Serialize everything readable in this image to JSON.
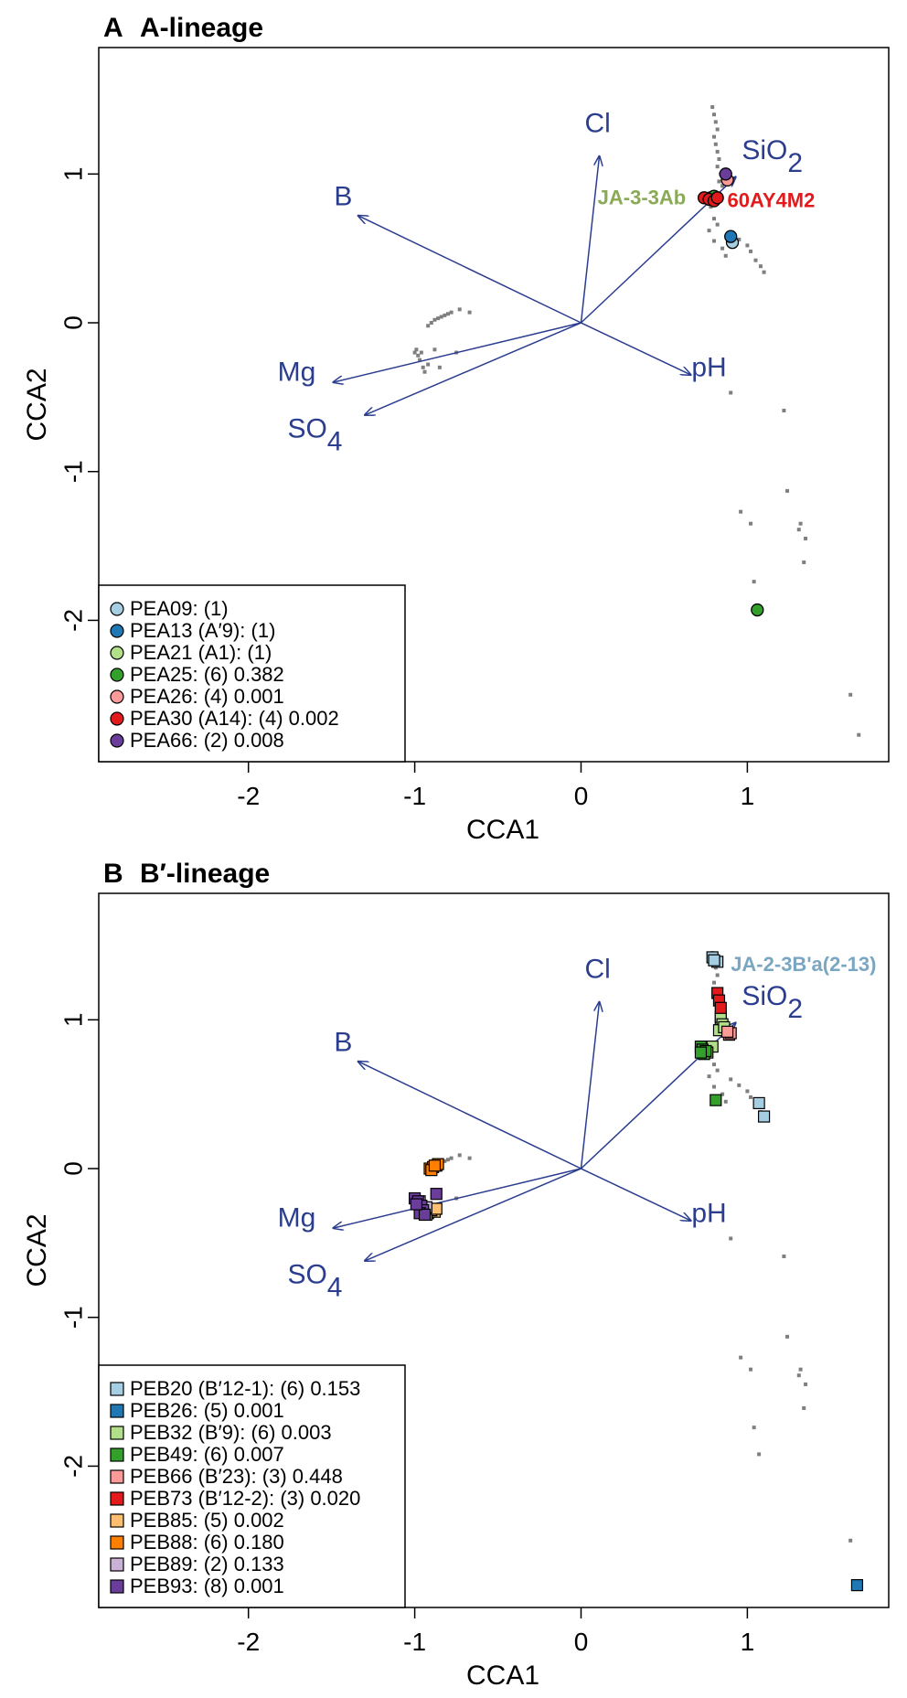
{
  "chart_data": [
    {
      "type": "scatter",
      "panel_label": "A",
      "title": "A-lineage",
      "xlabel": "CCA1",
      "ylabel": "CCA2",
      "xlim": [
        -2.9,
        1.85
      ],
      "ylim": [
        -2.95,
        1.85
      ],
      "xticks": [
        -2,
        -1,
        0,
        1
      ],
      "yticks": [
        -2,
        -1,
        0,
        1
      ],
      "grid": false,
      "legend_position": "bottom-left",
      "background_points": [
        [
          0.79,
          1.45
        ],
        [
          0.8,
          1.4
        ],
        [
          0.81,
          1.35
        ],
        [
          0.82,
          1.3
        ],
        [
          0.8,
          1.25
        ],
        [
          0.81,
          1.2
        ],
        [
          0.82,
          1.15
        ],
        [
          0.83,
          1.1
        ],
        [
          0.82,
          1.05
        ],
        [
          0.84,
          1.0
        ],
        [
          0.83,
          0.95
        ],
        [
          0.85,
          0.92
        ],
        [
          0.78,
          0.78
        ],
        [
          0.8,
          0.7
        ],
        [
          0.82,
          0.66
        ],
        [
          0.77,
          0.62
        ],
        [
          0.8,
          0.55
        ],
        [
          0.85,
          0.5
        ],
        [
          0.87,
          0.45
        ],
        [
          1.0,
          0.52
        ],
        [
          1.02,
          0.48
        ],
        [
          1.05,
          0.42
        ],
        [
          1.08,
          0.38
        ],
        [
          1.1,
          0.34
        ],
        [
          0.95,
          0.56
        ],
        [
          0.9,
          0.6
        ],
        [
          -1.0,
          -0.2
        ],
        [
          -0.98,
          -0.22
        ],
        [
          -0.97,
          -0.25
        ],
        [
          -0.95,
          -0.3
        ],
        [
          -0.94,
          -0.33
        ],
        [
          -0.92,
          -0.28
        ],
        [
          -0.99,
          -0.18
        ],
        [
          -0.96,
          -0.2
        ],
        [
          -0.9,
          0.0
        ],
        [
          -0.88,
          0.02
        ],
        [
          -0.86,
          0.03
        ],
        [
          -0.84,
          0.04
        ],
        [
          -0.82,
          0.05
        ],
        [
          -0.8,
          0.06
        ],
        [
          -0.78,
          0.07
        ],
        [
          -0.73,
          0.09
        ],
        [
          -0.67,
          0.07
        ],
        [
          -0.88,
          -0.18
        ],
        [
          -0.92,
          -0.02
        ],
        [
          -0.85,
          -0.3
        ],
        [
          -0.75,
          -0.2
        ],
        [
          0.9,
          -0.47
        ],
        [
          1.22,
          -0.59
        ],
        [
          1.24,
          -1.13
        ],
        [
          0.96,
          -1.27
        ],
        [
          1.02,
          -1.35
        ],
        [
          1.32,
          -1.35
        ],
        [
          1.35,
          -1.45
        ],
        [
          1.31,
          -1.39
        ],
        [
          1.34,
          -1.61
        ],
        [
          1.04,
          -1.74
        ],
        [
          1.62,
          -2.5
        ],
        [
          1.67,
          -2.77
        ]
      ],
      "vectors": [
        {
          "label": "Cl",
          "sub": "",
          "x": 0.11,
          "y": 1.12,
          "lx": 0.1,
          "ly": 1.28
        },
        {
          "label": "SiO",
          "sub": "2",
          "x": 0.93,
          "y": 0.98,
          "lx": 1.15,
          "ly": 1.1
        },
        {
          "label": "B",
          "sub": "",
          "x": -1.34,
          "y": 0.72,
          "lx": -1.43,
          "ly": 0.79
        },
        {
          "label": "pH",
          "sub": "",
          "x": 0.66,
          "y": -0.35,
          "lx": 0.77,
          "ly": -0.36
        },
        {
          "label": "Mg",
          "sub": "",
          "x": -1.49,
          "y": -0.4,
          "lx": -1.71,
          "ly": -0.39
        },
        {
          "label": "SO",
          "sub": "4",
          "x": -1.3,
          "y": -0.62,
          "lx": -1.6,
          "ly": -0.77
        }
      ],
      "series": [
        {
          "name": "PEA09: (1)",
          "color": "#a6cee3",
          "marker": "circle",
          "points": [
            [
              0.91,
              0.54
            ]
          ]
        },
        {
          "name": "PEA13 (A′9): (1)",
          "color": "#1f78b4",
          "marker": "circle",
          "points": [
            [
              0.9,
              0.58
            ]
          ]
        },
        {
          "name": "PEA21 (A1): (1)",
          "color": "#b2df8a",
          "marker": "circle",
          "points": [
            [
              0.78,
              0.84
            ]
          ]
        },
        {
          "name": "PEA25: (6) 0.382",
          "color": "#33a02c",
          "marker": "circle",
          "points": [
            [
              1.06,
              -1.93
            ],
            [
              0.8,
              0.85
            ]
          ]
        },
        {
          "name": "PEA26: (4) 0.001",
          "color": "#fb9a99",
          "marker": "circle",
          "points": [
            [
              0.88,
              0.96
            ]
          ]
        },
        {
          "name": "PEA30 (A14): (4) 0.002",
          "color": "#e31a1c",
          "marker": "circle",
          "points": [
            [
              0.74,
              0.84
            ],
            [
              0.77,
              0.83
            ],
            [
              0.8,
              0.82
            ],
            [
              0.82,
              0.84
            ]
          ]
        },
        {
          "name": "PEA66: (2) 0.008",
          "color": "#6a3d9a",
          "marker": "circle",
          "points": [
            [
              0.87,
              1.0
            ]
          ]
        }
      ],
      "annotations": [
        {
          "text": "JA-3-3Ab",
          "color": "#8aaa55",
          "x": 0.1,
          "y": 0.84
        },
        {
          "text": "60AY4M2",
          "color": "#e31a1c",
          "x": 0.88,
          "y": 0.82
        }
      ]
    },
    {
      "type": "scatter",
      "panel_label": "B",
      "title": "B′-lineage",
      "xlabel": "CCA1",
      "ylabel": "CCA2",
      "xlim": [
        -2.9,
        1.85
      ],
      "ylim": [
        -2.95,
        1.85
      ],
      "xticks": [
        -2,
        -1,
        0,
        1
      ],
      "yticks": [
        -2,
        -1,
        0,
        1
      ],
      "grid": false,
      "legend_position": "bottom-left",
      "background_points": [
        [
          0.79,
          1.45
        ],
        [
          0.8,
          1.4
        ],
        [
          0.81,
          1.35
        ],
        [
          0.82,
          1.3
        ],
        [
          0.8,
          1.25
        ],
        [
          0.81,
          1.2
        ],
        [
          0.82,
          1.15
        ],
        [
          0.83,
          1.1
        ],
        [
          0.82,
          1.05
        ],
        [
          0.84,
          1.0
        ],
        [
          0.83,
          0.95
        ],
        [
          0.85,
          0.92
        ],
        [
          0.78,
          0.78
        ],
        [
          0.8,
          0.7
        ],
        [
          0.82,
          0.66
        ],
        [
          0.77,
          0.62
        ],
        [
          0.8,
          0.55
        ],
        [
          0.85,
          0.5
        ],
        [
          0.87,
          0.45
        ],
        [
          1.0,
          0.52
        ],
        [
          1.02,
          0.48
        ],
        [
          1.05,
          0.42
        ],
        [
          1.08,
          0.38
        ],
        [
          1.1,
          0.34
        ],
        [
          0.95,
          0.56
        ],
        [
          0.9,
          0.6
        ],
        [
          -1.0,
          -0.2
        ],
        [
          -0.98,
          -0.22
        ],
        [
          -0.97,
          -0.25
        ],
        [
          -0.95,
          -0.3
        ],
        [
          -0.94,
          -0.33
        ],
        [
          -0.92,
          -0.28
        ],
        [
          -0.99,
          -0.18
        ],
        [
          -0.96,
          -0.2
        ],
        [
          -0.9,
          0.0
        ],
        [
          -0.88,
          0.02
        ],
        [
          -0.86,
          0.03
        ],
        [
          -0.84,
          0.04
        ],
        [
          -0.82,
          0.05
        ],
        [
          -0.8,
          0.06
        ],
        [
          -0.78,
          0.07
        ],
        [
          -0.73,
          0.09
        ],
        [
          -0.67,
          0.07
        ],
        [
          -0.88,
          -0.18
        ],
        [
          -0.92,
          -0.02
        ],
        [
          -0.85,
          -0.3
        ],
        [
          -0.75,
          -0.2
        ],
        [
          0.9,
          -0.47
        ],
        [
          1.22,
          -0.59
        ],
        [
          1.24,
          -1.13
        ],
        [
          0.96,
          -1.27
        ],
        [
          1.02,
          -1.35
        ],
        [
          1.32,
          -1.35
        ],
        [
          1.35,
          -1.45
        ],
        [
          1.31,
          -1.39
        ],
        [
          1.34,
          -1.61
        ],
        [
          1.04,
          -1.74
        ],
        [
          1.07,
          -1.92
        ],
        [
          1.62,
          -2.5
        ]
      ],
      "vectors": [
        {
          "label": "Cl",
          "sub": "",
          "x": 0.11,
          "y": 1.12,
          "lx": 0.1,
          "ly": 1.28
        },
        {
          "label": "SiO",
          "sub": "2",
          "x": 0.93,
          "y": 0.98,
          "lx": 1.15,
          "ly": 1.1
        },
        {
          "label": "B",
          "sub": "",
          "x": -1.34,
          "y": 0.72,
          "lx": -1.43,
          "ly": 0.79
        },
        {
          "label": "pH",
          "sub": "",
          "x": 0.66,
          "y": -0.35,
          "lx": 0.77,
          "ly": -0.36
        },
        {
          "label": "Mg",
          "sub": "",
          "x": -1.49,
          "y": -0.4,
          "lx": -1.71,
          "ly": -0.39
        },
        {
          "label": "SO",
          "sub": "4",
          "x": -1.3,
          "y": -0.62,
          "lx": -1.6,
          "ly": -0.77
        }
      ],
      "series": [
        {
          "name": "PEB20 (B′12-1): (6) 0.153",
          "color": "#a6cee3",
          "marker": "square",
          "points": [
            [
              0.79,
              1.42
            ],
            [
              0.82,
              1.39
            ],
            [
              1.07,
              0.44
            ],
            [
              1.1,
              0.35
            ],
            [
              0.8,
              1.4
            ],
            [
              0.84,
              1.0
            ]
          ]
        },
        {
          "name": "PEB26: (5) 0.001",
          "color": "#1f78b4",
          "marker": "square",
          "points": [
            [
              1.66,
              -2.8
            ]
          ]
        },
        {
          "name": "PEB32 (B′9): (6) 0.003",
          "color": "#b2df8a",
          "marker": "square",
          "points": [
            [
              0.84,
              1.02
            ],
            [
              0.85,
              0.97
            ],
            [
              0.83,
              0.93
            ],
            [
              0.79,
              0.82
            ],
            [
              0.76,
              0.78
            ],
            [
              0.86,
              0.95
            ]
          ]
        },
        {
          "name": "PEB49: (6) 0.007",
          "color": "#33a02c",
          "marker": "square",
          "points": [
            [
              0.72,
              0.82
            ],
            [
              0.74,
              0.77
            ],
            [
              0.81,
              0.46
            ],
            [
              0.73,
              0.8
            ],
            [
              0.75,
              0.79
            ],
            [
              0.72,
              0.78
            ]
          ]
        },
        {
          "name": "PEB66 (B′23): (3) 0.448",
          "color": "#fb9a99",
          "marker": "square",
          "points": [
            [
              0.89,
              0.9
            ],
            [
              0.9,
              0.91
            ],
            [
              0.88,
              0.92
            ]
          ]
        },
        {
          "name": "PEB73 (B′12-2): (3) 0.020",
          "color": "#e31a1c",
          "marker": "square",
          "points": [
            [
              0.82,
              1.18
            ],
            [
              0.83,
              1.13
            ],
            [
              0.84,
              1.08
            ]
          ]
        },
        {
          "name": "PEB85: (5) 0.002",
          "color": "#fdbf6f",
          "marker": "square",
          "points": [
            [
              -0.92,
              -0.3
            ],
            [
              -0.88,
              -0.29
            ],
            [
              -0.9,
              -0.28
            ],
            [
              -0.93,
              -0.31
            ],
            [
              -0.87,
              -0.27
            ]
          ]
        },
        {
          "name": "PEB88: (6) 0.180",
          "color": "#ff7f00",
          "marker": "square",
          "points": [
            [
              -0.91,
              0.0
            ],
            [
              -0.89,
              0.01
            ],
            [
              -0.87,
              0.02
            ],
            [
              -0.86,
              0.03
            ],
            [
              -0.9,
              -0.01
            ],
            [
              -0.88,
              0.02
            ]
          ]
        },
        {
          "name": "PEB89: (2) 0.133",
          "color": "#cab2d6",
          "marker": "square",
          "points": [
            [
              -0.97,
              -0.22
            ],
            [
              -0.93,
              -0.26
            ]
          ]
        },
        {
          "name": "PEB93: (8) 0.001",
          "color": "#6a3d9a",
          "marker": "square",
          "points": [
            [
              -1.0,
              -0.2
            ],
            [
              -0.98,
              -0.22
            ],
            [
              -0.96,
              -0.25
            ],
            [
              -0.95,
              -0.28
            ],
            [
              -0.97,
              -0.3
            ],
            [
              -0.94,
              -0.31
            ],
            [
              -0.87,
              -0.17
            ],
            [
              -0.99,
              -0.24
            ]
          ]
        }
      ],
      "annotations": [
        {
          "text": "JA-2-3B'a(2-13)",
          "color": "#7aa6c2",
          "x": 0.9,
          "y": 1.37
        }
      ]
    }
  ]
}
